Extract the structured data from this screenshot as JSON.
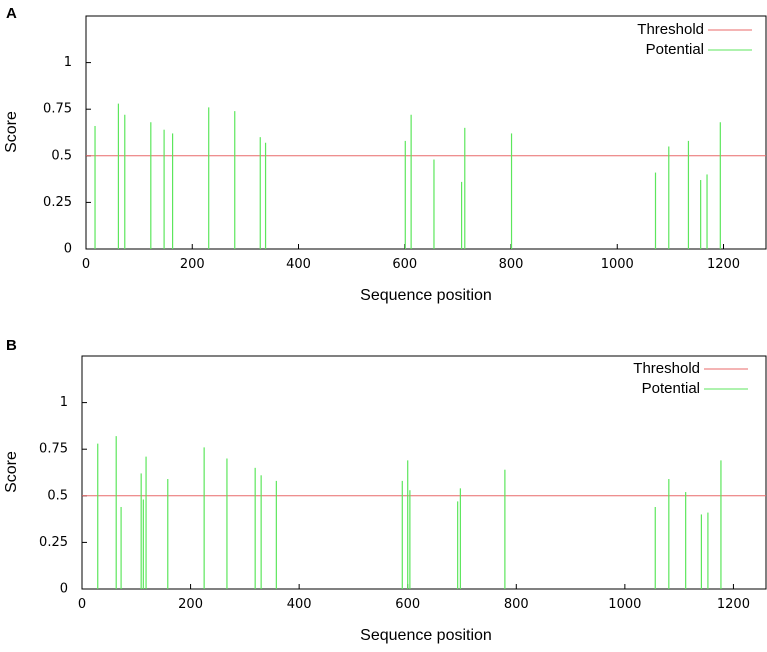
{
  "chart_data": [
    {
      "type": "bar",
      "panel_label": "A",
      "xlabel": "Sequence position",
      "ylabel": "Score",
      "xlim": [
        0,
        1280
      ],
      "ylim": [
        0,
        1.25
      ],
      "xticks": [
        0,
        200,
        400,
        600,
        800,
        1000,
        1200
      ],
      "xtick_labels": [
        "0",
        "200",
        "400",
        "600",
        "800",
        "1000",
        "1200"
      ],
      "yticks": [
        0,
        0.25,
        0.5,
        0.75,
        1
      ],
      "ytick_labels": [
        "0",
        "0.25",
        "0.5",
        "0.75",
        "1"
      ],
      "legend_position": "top-right",
      "series": [
        {
          "name": "Threshold",
          "color": "#e86a6a",
          "kind": "hline",
          "value": 0.5
        },
        {
          "name": "Potential",
          "color": "#5ce65c",
          "kind": "impulse",
          "x": [
            17,
            61,
            73,
            122,
            147,
            163,
            231,
            280,
            328,
            338,
            601,
            612,
            655,
            707,
            713,
            801,
            1072,
            1097,
            1134,
            1157,
            1169,
            1194
          ],
          "y": [
            0.66,
            0.78,
            0.72,
            0.68,
            0.64,
            0.62,
            0.76,
            0.74,
            0.6,
            0.57,
            0.58,
            0.72,
            0.48,
            0.36,
            0.65,
            0.62,
            0.41,
            0.55,
            0.58,
            0.37,
            0.4,
            0.68
          ]
        }
      ]
    },
    {
      "type": "bar",
      "panel_label": "B",
      "xlabel": "Sequence position",
      "ylabel": "Score",
      "xlim": [
        0,
        1260
      ],
      "ylim": [
        0,
        1.25
      ],
      "xticks": [
        0,
        200,
        400,
        600,
        800,
        1000,
        1200
      ],
      "xtick_labels": [
        "0",
        "200",
        "400",
        "600",
        "800",
        "1000",
        "1200"
      ],
      "yticks": [
        0,
        0.25,
        0.5,
        0.75,
        1
      ],
      "ytick_labels": [
        "0",
        "0.25",
        "0.5",
        "0.75",
        "1"
      ],
      "legend_position": "top-right",
      "series": [
        {
          "name": "Threshold",
          "color": "#e86a6a",
          "kind": "hline",
          "value": 0.5
        },
        {
          "name": "Potential",
          "color": "#5ce65c",
          "kind": "impulse",
          "x": [
            29,
            63,
            72,
            109,
            113,
            118,
            158,
            225,
            267,
            319,
            330,
            358,
            590,
            600,
            604,
            692,
            697,
            779,
            1056,
            1081,
            1112,
            1141,
            1153,
            1177
          ],
          "y": [
            0.78,
            0.82,
            0.44,
            0.62,
            0.48,
            0.71,
            0.59,
            0.76,
            0.7,
            0.65,
            0.61,
            0.58,
            0.58,
            0.69,
            0.53,
            0.47,
            0.54,
            0.64,
            0.44,
            0.59,
            0.52,
            0.4,
            0.41,
            0.69
          ]
        }
      ]
    }
  ]
}
